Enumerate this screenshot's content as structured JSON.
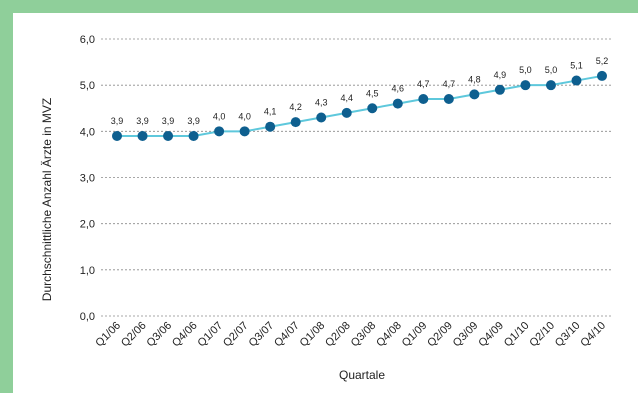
{
  "chart_data": {
    "type": "line",
    "xlabel": "Quartale",
    "ylabel": "Durchschnittliche Anzahl Ärzte in MVZ",
    "ylim": [
      0,
      6
    ],
    "yticks": [
      "0,0",
      "1,0",
      "2,0",
      "3,0",
      "4,0",
      "5,0",
      "6,0"
    ],
    "grid": true,
    "categories": [
      "Q1/06",
      "Q2/06",
      "Q3/06",
      "Q4/06",
      "Q1/07",
      "Q2/07",
      "Q3/07",
      "Q4/07",
      "Q1/08",
      "Q2/08",
      "Q3/08",
      "Q4/08",
      "Q1/09",
      "Q2/09",
      "Q3/09",
      "Q4/09",
      "Q1/10",
      "Q2/10",
      "Q3/10",
      "Q4/10"
    ],
    "values": [
      3.9,
      3.9,
      3.9,
      3.9,
      4.0,
      4.0,
      4.1,
      4.2,
      4.3,
      4.4,
      4.5,
      4.6,
      4.7,
      4.7,
      4.8,
      4.9,
      5.0,
      5.0,
      5.1,
      5.2
    ],
    "value_labels": [
      "3,9",
      "3,9",
      "3,9",
      "3,9",
      "4,0",
      "4,0",
      "4,1",
      "4,2",
      "4,3",
      "4,4",
      "4,5",
      "4,6",
      "4,7",
      "4,7",
      "4,8",
      "4,9",
      "5,0",
      "5,0",
      "5,1",
      "5,2"
    ],
    "colors": {
      "line": "#5ec8dc",
      "marker": "#0e5f8f",
      "grid": "#8a8a8a"
    }
  }
}
